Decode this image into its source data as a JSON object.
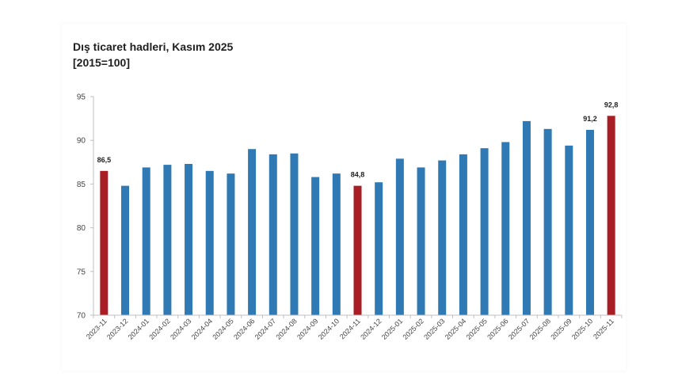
{
  "header": {
    "title": "Dış ticaret hadleri, Kasım 2025",
    "subtitle": "[2015=100]"
  },
  "colors": {
    "bar": "#2f7ab4",
    "highlight": "#a91d24",
    "axis": "#bfbfbf"
  },
  "chart_data": {
    "type": "bar",
    "title": "Dış ticaret hadleri, Kasım 2025",
    "subtitle": "[2015=100]",
    "categories": [
      "2023-11",
      "2023-12",
      "2024-01",
      "2024-02",
      "2024-03",
      "2024-04",
      "2024-05",
      "2024-06",
      "2024-07",
      "2024-08",
      "2024-09",
      "2024-10",
      "2024-11",
      "2024-12",
      "2025-01",
      "2025-02",
      "2025-03",
      "2025-04",
      "2025-05",
      "2025-06",
      "2025-07",
      "2025-08",
      "2025-09",
      "2025-10",
      "2025-11"
    ],
    "values": [
      86.5,
      84.8,
      86.9,
      87.2,
      87.3,
      86.5,
      86.2,
      89.0,
      88.4,
      88.5,
      85.8,
      86.2,
      84.8,
      85.2,
      87.9,
      86.9,
      87.7,
      88.4,
      89.1,
      89.8,
      92.2,
      91.3,
      89.4,
      91.2,
      92.8
    ],
    "highlighted": [
      "2023-11",
      "2024-11",
      "2025-11"
    ],
    "data_labels": [
      {
        "category": "2023-11",
        "text": "86,5"
      },
      {
        "category": "2024-11",
        "text": "84,8"
      },
      {
        "category": "2025-10",
        "text": "91,2"
      },
      {
        "category": "2025-11",
        "text": "92,8"
      }
    ],
    "yticks": [
      70,
      75,
      80,
      85,
      90,
      95
    ],
    "ylim": [
      70,
      95
    ],
    "xlabel": "",
    "ylabel": "",
    "grid": false,
    "legend": "none"
  }
}
